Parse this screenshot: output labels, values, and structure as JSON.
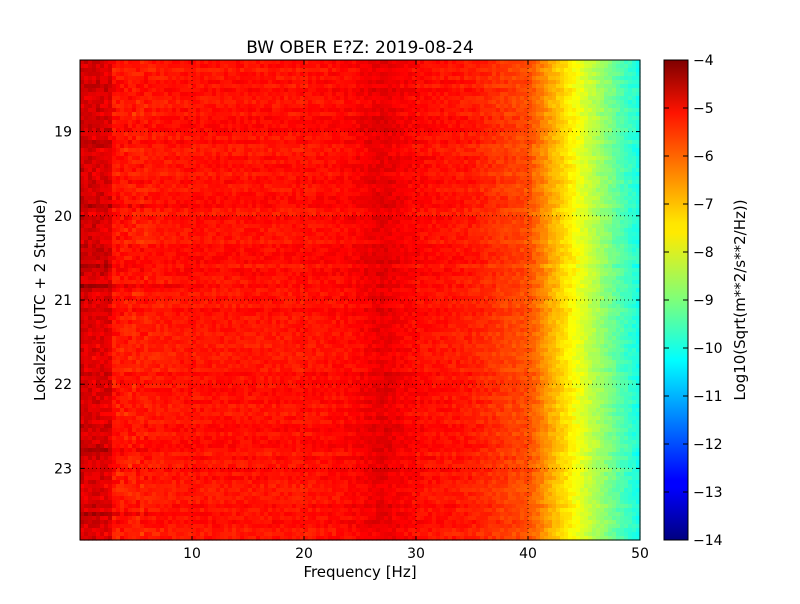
{
  "chart_data": {
    "type": "heatmap",
    "title": "BW OBER E?Z: 2019-08-24",
    "xlabel": "Frequency [Hz]",
    "ylabel": "Lokalzeit (UTC + 2 Stunde)",
    "colorbar_label": "Log10(Sqrt(m**2/s**2/Hz))",
    "xlim": [
      0,
      50
    ],
    "ylim": [
      23.85,
      18.15
    ],
    "x_ticks": [
      {
        "value": 10,
        "label": "10"
      },
      {
        "value": 20,
        "label": "20"
      },
      {
        "value": 30,
        "label": "30"
      },
      {
        "value": 40,
        "label": "40"
      },
      {
        "value": 50,
        "label": "50"
      }
    ],
    "y_ticks": [
      {
        "value": 19,
        "label": "19"
      },
      {
        "value": 20,
        "label": "20"
      },
      {
        "value": 21,
        "label": "21"
      },
      {
        "value": 22,
        "label": "22"
      },
      {
        "value": 23,
        "label": "23"
      }
    ],
    "colorbar_range": [
      -14,
      -4
    ],
    "colorbar_ticks": [
      {
        "value": -4,
        "label": "−4"
      },
      {
        "value": -5,
        "label": "−5"
      },
      {
        "value": -6,
        "label": "−6"
      },
      {
        "value": -7,
        "label": "−7"
      },
      {
        "value": -8,
        "label": "−8"
      },
      {
        "value": -9,
        "label": "−9"
      },
      {
        "value": -10,
        "label": "−10"
      },
      {
        "value": -11,
        "label": "−11"
      },
      {
        "value": -12,
        "label": "−12"
      },
      {
        "value": -13,
        "label": "−13"
      },
      {
        "value": -14,
        "label": "−14"
      }
    ],
    "colormap": "jet",
    "grid": true,
    "frequency_profile": {
      "freq_hz": [
        0,
        5,
        10,
        20,
        24,
        26,
        27,
        28,
        30,
        35,
        38,
        40,
        41,
        42,
        43,
        44,
        45,
        46,
        47,
        48,
        49,
        50
      ],
      "value": [
        -5.3,
        -5.5,
        -5.4,
        -5.4,
        -5.3,
        -5.1,
        -5.0,
        -5.1,
        -5.3,
        -5.5,
        -5.8,
        -6.0,
        -6.4,
        -6.9,
        -7.3,
        -7.7,
        -8.1,
        -8.5,
        -8.9,
        -9.3,
        -9.7,
        -10.0
      ]
    },
    "event_rows": [
      {
        "time": 18.45,
        "value": -4.8
      },
      {
        "time": 19.15,
        "value": -4.6
      },
      {
        "time": 19.9,
        "value": -4.8
      },
      {
        "time": 20.6,
        "value": -4.7
      },
      {
        "time": 20.85,
        "value": -4.3
      },
      {
        "time": 22.8,
        "value": -4.4
      },
      {
        "time": 23.55,
        "value": -4.6
      }
    ]
  }
}
